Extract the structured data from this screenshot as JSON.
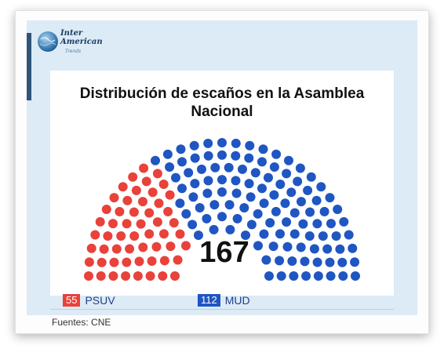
{
  "logo": {
    "line1": "Inter",
    "line2": "American",
    "line3": "Trends"
  },
  "chart_data": {
    "type": "parliament",
    "title": "Distribución de escaños en la Asamblea Nacional",
    "total": 167,
    "parties": [
      {
        "name": "PSUV",
        "seats": 55,
        "color": "#e8423b"
      },
      {
        "name": "MUD",
        "seats": 112,
        "color": "#1f56c2"
      }
    ]
  },
  "source": "Fuentes: CNE"
}
